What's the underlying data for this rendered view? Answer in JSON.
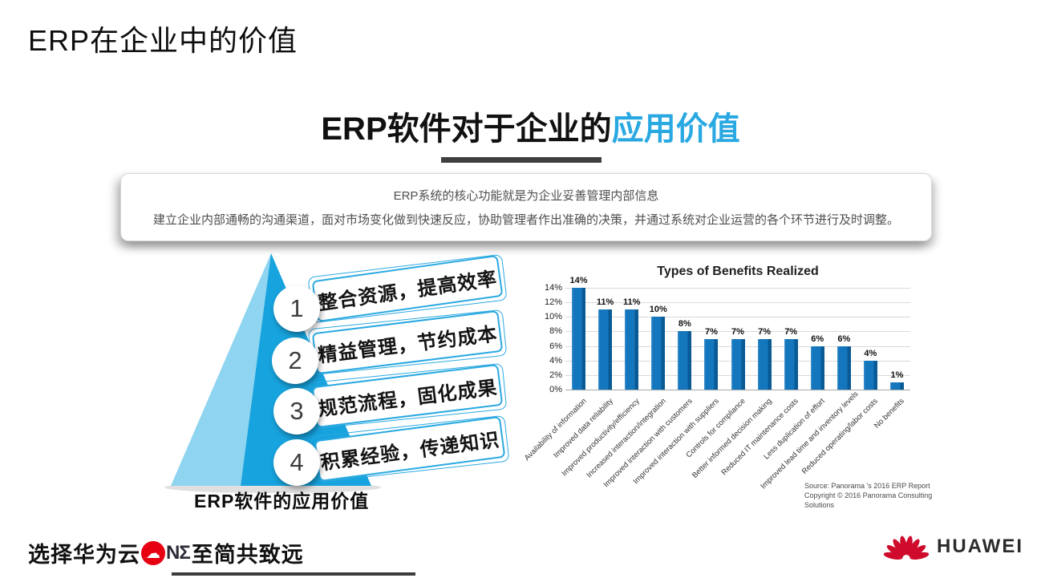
{
  "page_title": "ERP在企业中的价值",
  "heading": {
    "black_part": "ERP软件对于企业的",
    "accent_part": "应用价值",
    "accent_color": "#29a8e2"
  },
  "summary_box": {
    "line1": "ERP系统的核心功能就是为企业妥善管理内部信息",
    "line2": "建立企业内部通畅的沟通渠道，面对市场变化做到快速反应，协助管理者作出准确的决策，并通过系统对企业运营的各个环节进行及时调整。"
  },
  "pyramid": {
    "caption": "ERP软件的应用价值",
    "colors": {
      "light_face": "#8fd4f0",
      "dark_face": "#17a3dd",
      "banner_border": "#2ba9e1"
    },
    "items": [
      {
        "num": "1",
        "label": "整合资源，提高效率"
      },
      {
        "num": "2",
        "label": "精益管理，节约成本"
      },
      {
        "num": "3",
        "label": "规范流程，固化成果"
      },
      {
        "num": "4",
        "label": "积累经验，传递知识"
      }
    ]
  },
  "chart_data": {
    "type": "bar",
    "title": "Types of Benefits Realized",
    "categories": [
      "Availability of information",
      "Improved data reliability",
      "Improved productivity/efficiency",
      "Increased interaction/integration",
      "Improved interaction with customers",
      "Improved interaction with suppliers",
      "Controls for compliance",
      "Better informed decision making",
      "Reduced IT maintenance costs",
      "Less duplication of effort",
      "Improved lead time and inventory levels",
      "Reduced operating/labor costs",
      "No benefits"
    ],
    "values": [
      14,
      11,
      11,
      10,
      8,
      7,
      7,
      7,
      7,
      6,
      6,
      4,
      1
    ],
    "value_labels": [
      "14%",
      "11%",
      "11%",
      "10%",
      "8%",
      "7%",
      "7%",
      "7%",
      "7%",
      "6%",
      "6%",
      "4%",
      "1%"
    ],
    "ylabel_ticks": [
      "0%",
      "2%",
      "4%",
      "6%",
      "8%",
      "10%",
      "12%",
      "14%"
    ],
    "ylim": [
      0,
      14
    ],
    "grid": true,
    "legend": false,
    "bar_color": "#1476bc",
    "xlabel": "",
    "ylabel": ""
  },
  "chart_source": {
    "line1": "Source: Panorama 's 2016 ERP Report",
    "line2": "Copyright © 2016 Panorama Consulting Solutions"
  },
  "footer": {
    "left_pre": "选择华为云",
    "cloud_icon": "☁",
    "one_letters": "NΣ",
    "left_post": "至简共致远",
    "brand": "HUAWEI",
    "brand_red": "#cf0a2c"
  }
}
